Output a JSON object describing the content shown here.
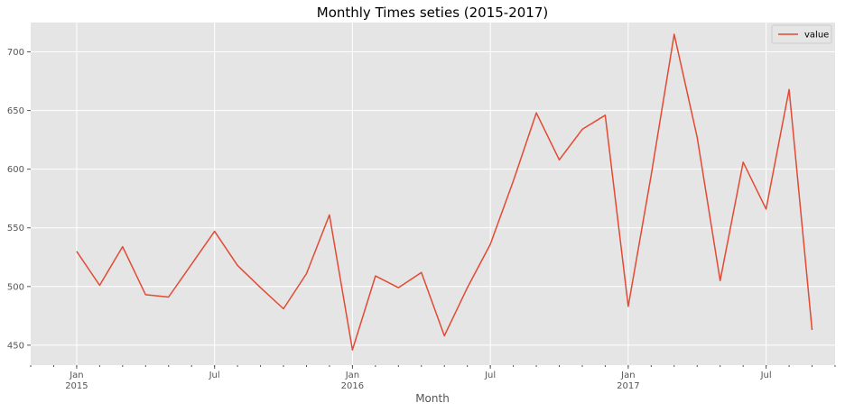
{
  "chart_data": {
    "type": "line",
    "title": "Monthly Times seties (2015-2017)",
    "xlabel": "Month",
    "ylabel": "",
    "x": [
      "2015-01",
      "2015-02",
      "2015-03",
      "2015-04",
      "2015-05",
      "2015-06",
      "2015-07",
      "2015-08",
      "2015-09",
      "2015-10",
      "2015-11",
      "2015-12",
      "2016-01",
      "2016-02",
      "2016-03",
      "2016-04",
      "2016-05",
      "2016-06",
      "2016-07",
      "2016-08",
      "2016-09",
      "2016-10",
      "2016-11",
      "2016-12",
      "2017-01",
      "2017-02",
      "2017-03",
      "2017-04",
      "2017-05",
      "2017-06",
      "2017-07",
      "2017-08",
      "2017-09"
    ],
    "series": [
      {
        "name": "value",
        "color": "#E24A33",
        "values": [
          530,
          501,
          534,
          493,
          491,
          519,
          547,
          518,
          499,
          481,
          511,
          561,
          446,
          509,
          499,
          512,
          458,
          499,
          536,
          590,
          648,
          608,
          634,
          646,
          483,
          595,
          715,
          627,
          505,
          606,
          566,
          668,
          463
        ]
      }
    ],
    "x_range": [
      "2014-11",
      "2017-10"
    ],
    "ylim": [
      433,
      725
    ],
    "y_ticks": [
      450,
      500,
      550,
      600,
      650,
      700
    ],
    "x_ticks": [
      {
        "x": "2015-01",
        "label": "Jan",
        "sublabel": "2015"
      },
      {
        "x": "2015-07",
        "label": "Jul",
        "sublabel": ""
      },
      {
        "x": "2016-01",
        "label": "Jan",
        "sublabel": "2016"
      },
      {
        "x": "2016-07",
        "label": "Jul",
        "sublabel": ""
      },
      {
        "x": "2017-01",
        "label": "Jan",
        "sublabel": "2017"
      },
      {
        "x": "2017-07",
        "label": "Jul",
        "sublabel": ""
      }
    ],
    "grid": true,
    "legend_position": "top-right",
    "background_color": "#E5E5E5",
    "grid_color": "#FFFFFF"
  }
}
